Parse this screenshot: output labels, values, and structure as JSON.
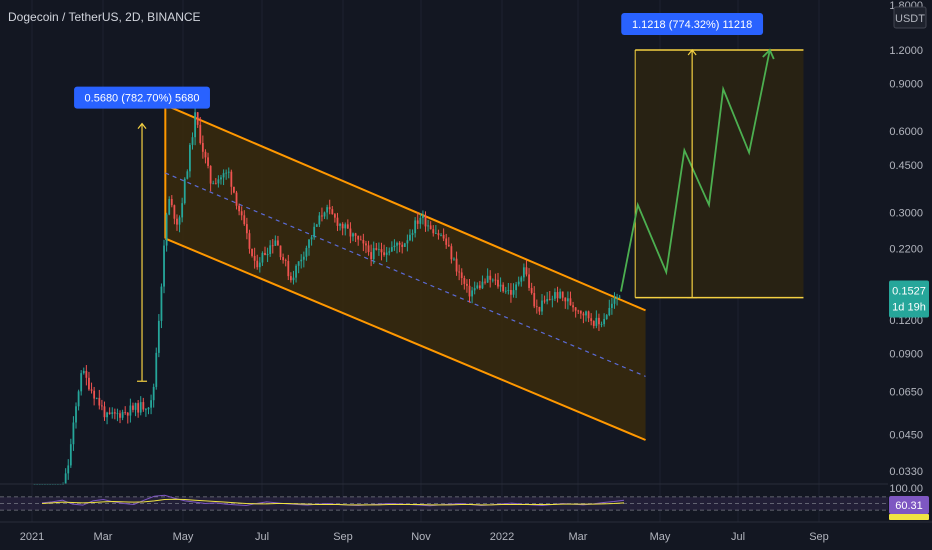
{
  "header": {
    "title": "Dogecoin / TetherUS, 2D, BINANCE"
  },
  "axis": {
    "currency_label": "USDT"
  },
  "colors": {
    "background": "#131722",
    "up_candle": "#26a69a",
    "down_candle": "#ef5350",
    "channel_line": "#ff9800",
    "channel_fill": "#3a2a0c",
    "projection_fill": "#2b2412",
    "projection_path": "#4caf50",
    "measure_line": "#f5d142",
    "label_bg": "#2962ff",
    "midline": "#5b6bd6",
    "rsi_line": "#7e57c2",
    "rsi_ma_line": "#f0e442"
  },
  "chart_data": {
    "type": "candlestick",
    "symbol": "Dogecoin / TetherUS",
    "interval": "2D",
    "exchange": "BINANCE",
    "y_scale": "log",
    "ylim": [
      0.025,
      1.8
    ],
    "y_ticks": [
      "1.8000",
      "1.2000",
      "0.9000",
      "0.6000",
      "0.4500",
      "0.3000",
      "0.2200",
      "0.1600",
      "0.1200",
      "0.0900",
      "0.0650",
      "0.0450",
      "0.0330"
    ],
    "x_ticks": [
      "2021",
      "Mar",
      "May",
      "Jul",
      "Sep",
      "Nov",
      "2022",
      "Mar",
      "May",
      "Jul",
      "Sep"
    ],
    "current_price": "0.1527",
    "countdown": "1d 19h",
    "price_path": [
      {
        "date": "2021-01-03",
        "price": 0.009
      },
      {
        "date": "2021-01-29",
        "price": 0.035
      },
      {
        "date": "2021-02-08",
        "price": 0.078
      },
      {
        "date": "2021-02-28",
        "price": 0.052
      },
      {
        "date": "2021-03-20",
        "price": 0.056
      },
      {
        "date": "2021-04-04",
        "price": 0.059
      },
      {
        "date": "2021-04-16",
        "price": 0.34
      },
      {
        "date": "2021-04-24",
        "price": 0.27
      },
      {
        "date": "2021-05-07",
        "price": 0.68
      },
      {
        "date": "2021-05-19",
        "price": 0.39
      },
      {
        "date": "2021-06-02",
        "price": 0.42
      },
      {
        "date": "2021-06-22",
        "price": 0.19
      },
      {
        "date": "2021-07-08",
        "price": 0.24
      },
      {
        "date": "2021-07-20",
        "price": 0.17
      },
      {
        "date": "2021-08-15",
        "price": 0.31
      },
      {
        "date": "2021-08-31",
        "price": 0.26
      },
      {
        "date": "2021-09-20",
        "price": 0.21
      },
      {
        "date": "2021-10-15",
        "price": 0.23
      },
      {
        "date": "2021-10-28",
        "price": 0.29
      },
      {
        "date": "2021-11-15",
        "price": 0.24
      },
      {
        "date": "2021-12-04",
        "price": 0.15
      },
      {
        "date": "2021-12-20",
        "price": 0.17
      },
      {
        "date": "2022-01-08",
        "price": 0.15
      },
      {
        "date": "2022-01-16",
        "price": 0.19
      },
      {
        "date": "2022-01-25",
        "price": 0.13
      },
      {
        "date": "2022-02-10",
        "price": 0.15
      },
      {
        "date": "2022-03-01",
        "price": 0.13
      },
      {
        "date": "2022-03-15",
        "price": 0.115
      },
      {
        "date": "2022-04-01",
        "price": 0.1527
      }
    ],
    "channel": {
      "upper": [
        {
          "date": "2021-04-14",
          "price": 0.75
        },
        {
          "date": "2022-04-20",
          "price": 0.13
        }
      ],
      "lower": [
        {
          "date": "2021-04-14",
          "price": 0.24
        },
        {
          "date": "2022-04-20",
          "price": 0.043
        }
      ],
      "mid": [
        {
          "date": "2021-04-14",
          "price": 0.42
        },
        {
          "date": "2022-04-20",
          "price": 0.074
        }
      ]
    },
    "measurements": [
      {
        "label": "0.5680 (782.70%) 5680",
        "from": {
          "date": "2021-03-27",
          "price": 0.071
        },
        "to": {
          "date": "2021-03-27",
          "price": 0.64
        }
      },
      {
        "label": "1.1218 (774.32%) 11218",
        "from": {
          "date": "2022-05-26",
          "price": 0.145
        },
        "to": {
          "date": "2022-05-26",
          "price": 1.2
        }
      }
    ],
    "projection": {
      "box": {
        "from_date": "2022-04-12",
        "to_date": "2022-08-20",
        "low": 0.145,
        "high": 1.2
      },
      "path": [
        {
          "date": "2022-04-01",
          "price": 0.1527
        },
        {
          "date": "2022-04-14",
          "price": 0.32
        },
        {
          "date": "2022-05-06",
          "price": 0.18
        },
        {
          "date": "2022-05-20",
          "price": 0.51
        },
        {
          "date": "2022-06-08",
          "price": 0.32
        },
        {
          "date": "2022-06-19",
          "price": 0.86
        },
        {
          "date": "2022-07-09",
          "price": 0.5
        },
        {
          "date": "2022-07-25",
          "price": 1.2
        }
      ]
    },
    "rsi": {
      "top_label": "100.00",
      "value": "60.31",
      "ylim": [
        0,
        100
      ],
      "levels": [
        70,
        50,
        30
      ],
      "series": [
        52,
        55,
        60,
        48,
        45,
        58,
        62,
        55,
        50,
        47,
        60,
        72,
        75,
        66,
        58,
        54,
        50,
        52,
        48,
        46,
        44,
        50,
        55,
        52,
        49,
        47,
        45,
        48,
        50,
        47,
        45,
        44,
        46,
        48,
        50,
        49,
        47,
        45,
        43,
        46,
        48,
        50,
        47,
        44,
        46,
        49,
        51,
        48,
        46,
        44,
        47,
        50,
        48,
        46,
        49,
        53,
        56,
        60
      ],
      "ma_series": [
        50,
        52,
        54,
        53,
        52,
        53,
        55,
        56,
        55,
        54,
        55,
        58,
        62,
        63,
        62,
        60,
        58,
        56,
        54,
        52,
        50,
        49,
        49,
        50,
        50,
        49,
        48,
        47,
        47,
        47,
        46,
        46,
        46,
        46,
        47,
        47,
        47,
        47,
        46,
        46,
        46,
        47,
        47,
        46,
        46,
        47,
        47,
        47,
        47,
        47,
        47,
        48,
        48,
        48,
        48,
        49,
        50,
        52
      ]
    }
  }
}
